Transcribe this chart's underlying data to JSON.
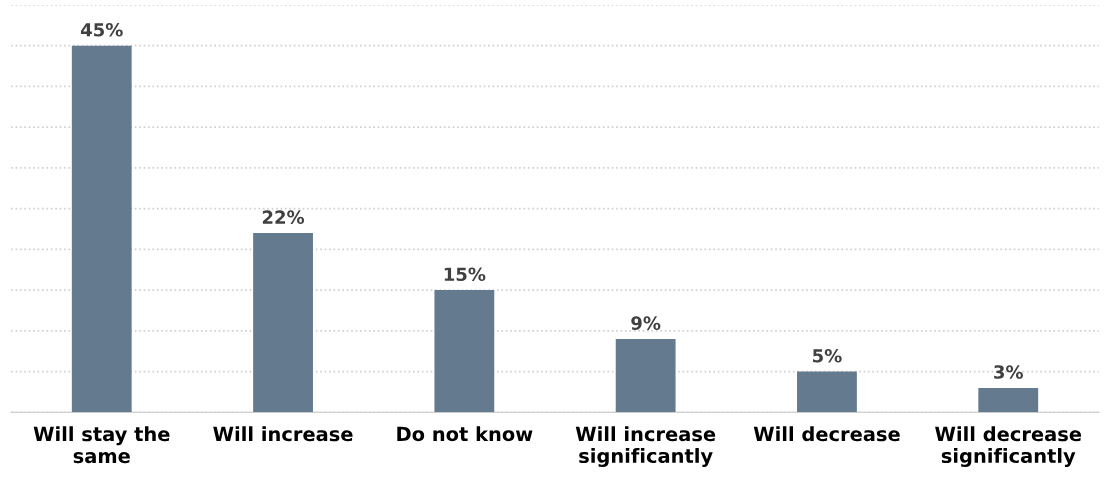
{
  "chart_data": {
    "type": "bar",
    "categories": [
      "Will stay the\nsame",
      "Will increase",
      "Do not know",
      "Will increase\nsignificantly",
      "Will decrease",
      "Will decrease\nsignificantly"
    ],
    "values": [
      45,
      22,
      15,
      9,
      5,
      3
    ],
    "value_labels": [
      "45%",
      "22%",
      "15%",
      "9%",
      "5%",
      "3%"
    ],
    "color": "#647a8f",
    "ylim": [
      0,
      50
    ],
    "yticks": [
      {
        "value": 0,
        "label": null
      },
      {
        "value": 5,
        "label": null
      },
      {
        "value": 10,
        "label": null
      },
      {
        "value": 15,
        "label": null
      },
      {
        "value": 20,
        "label": null
      },
      {
        "value": 25,
        "label": null
      },
      {
        "value": 30,
        "label": null
      },
      {
        "value": 35,
        "label": null
      },
      {
        "value": 40,
        "label": null
      },
      {
        "value": 45,
        "label": null
      },
      {
        "value": 50,
        "label": null
      }
    ],
    "tick_labels": "x",
    "grid": "y"
  }
}
